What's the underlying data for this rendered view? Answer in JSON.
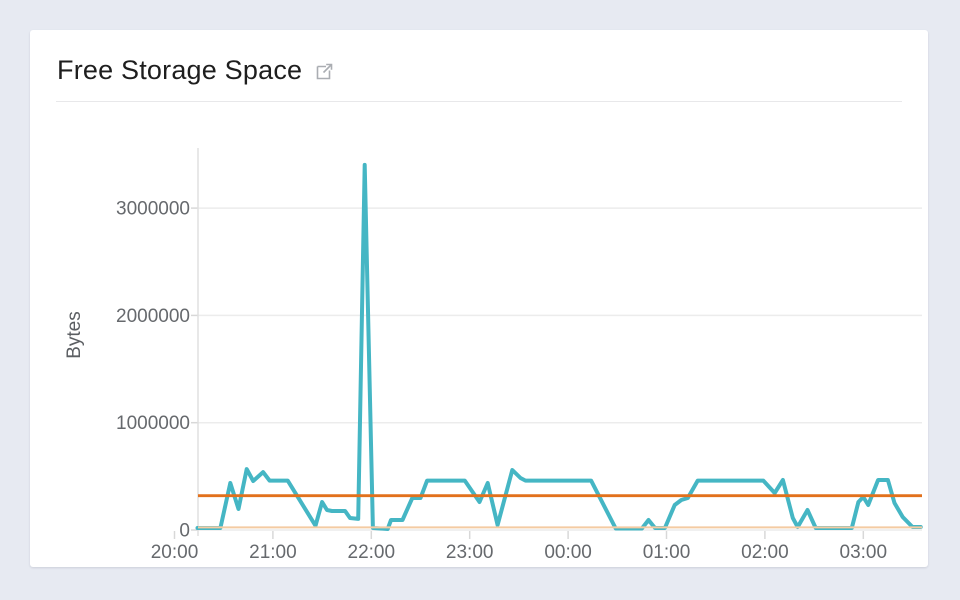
{
  "page": {
    "background_color": "#e7eaf2"
  },
  "card": {
    "title": "Free Storage Space",
    "title_icon": "external-link-icon"
  },
  "chart_data": {
    "type": "line",
    "title": "Free Storage Space",
    "xlabel": "",
    "ylabel": "Bytes",
    "legend_position": "none",
    "grid": "horizontal",
    "ylim": [
      0,
      3560000
    ],
    "x_start_time": "20:14",
    "x_end_time": "03:35",
    "x_tick_labels": [
      "20:00",
      "21:00",
      "22:00",
      "23:00",
      "00:00",
      "01:00",
      "02:00",
      "03:00"
    ],
    "y_ticks": [
      {
        "label": "0",
        "value": 0
      },
      {
        "label": "1000000",
        "value": 1000000
      },
      {
        "label": "2000000",
        "value": 2000000
      },
      {
        "label": "3000000",
        "value": 3000000
      }
    ],
    "reference_lines": [
      {
        "name": "upper-threshold",
        "value": 320000,
        "color": "#e2711c",
        "width": 2.8
      },
      {
        "name": "lower-threshold",
        "value": 25000,
        "color": "#f4cba2",
        "width": 2
      }
    ],
    "series": [
      {
        "name": "Free Storage Space",
        "color": "#45b6c4",
        "points": [
          [
            "20:14",
            19000
          ],
          [
            "20:28",
            19000
          ],
          [
            "20:34",
            438000
          ],
          [
            "20:39",
            196000
          ],
          [
            "20:44",
            568000
          ],
          [
            "20:48",
            457000
          ],
          [
            "20:54",
            540000
          ],
          [
            "20:58",
            460000
          ],
          [
            "21:09",
            460000
          ],
          [
            "21:26",
            40000
          ],
          [
            "21:30",
            261000
          ],
          [
            "21:33",
            186000
          ],
          [
            "21:36",
            177000
          ],
          [
            "21:44",
            177000
          ],
          [
            "21:47",
            112000
          ],
          [
            "21:52",
            103000
          ],
          [
            "21:56",
            3403000
          ],
          [
            "22:01",
            19000
          ],
          [
            "22:10",
            9000
          ],
          [
            "22:12",
            93000
          ],
          [
            "22:19",
            93000
          ],
          [
            "22:25",
            298000
          ],
          [
            "22:30",
            298000
          ],
          [
            "22:34",
            460000
          ],
          [
            "22:57",
            460000
          ],
          [
            "23:06",
            261000
          ],
          [
            "23:11",
            438000
          ],
          [
            "23:17",
            47000
          ],
          [
            "23:26",
            559000
          ],
          [
            "23:31",
            485000
          ],
          [
            "23:34",
            460000
          ],
          [
            "00:14",
            460000
          ],
          [
            "00:29",
            14000
          ],
          [
            "00:45",
            14000
          ],
          [
            "00:49",
            93000
          ],
          [
            "00:53",
            19000
          ],
          [
            "00:59",
            19000
          ],
          [
            "01:05",
            233000
          ],
          [
            "01:09",
            280000
          ],
          [
            "01:13",
            298000
          ],
          [
            "01:19",
            460000
          ],
          [
            "01:59",
            460000
          ],
          [
            "02:06",
            345000
          ],
          [
            "02:11",
            466000
          ],
          [
            "02:17",
            112000
          ],
          [
            "02:20",
            28000
          ],
          [
            "02:26",
            186000
          ],
          [
            "02:31",
            19000
          ],
          [
            "02:53",
            19000
          ],
          [
            "02:57",
            261000
          ],
          [
            "03:00",
            308000
          ],
          [
            "03:03",
            233000
          ],
          [
            "03:09",
            466000
          ],
          [
            "03:15",
            466000
          ],
          [
            "03:19",
            252000
          ],
          [
            "03:24",
            121000
          ],
          [
            "03:30",
            28000
          ],
          [
            "03:35",
            28000
          ]
        ]
      }
    ],
    "style": {
      "line_color": "#45b6c4",
      "line_width": 4,
      "gridline_color": "#ececec",
      "axis_line_color": "#e0e0e0",
      "tick_color": "#d8d8d8",
      "tick_label_color": "#66696d",
      "axis_title_color": "#5b5e62"
    }
  }
}
